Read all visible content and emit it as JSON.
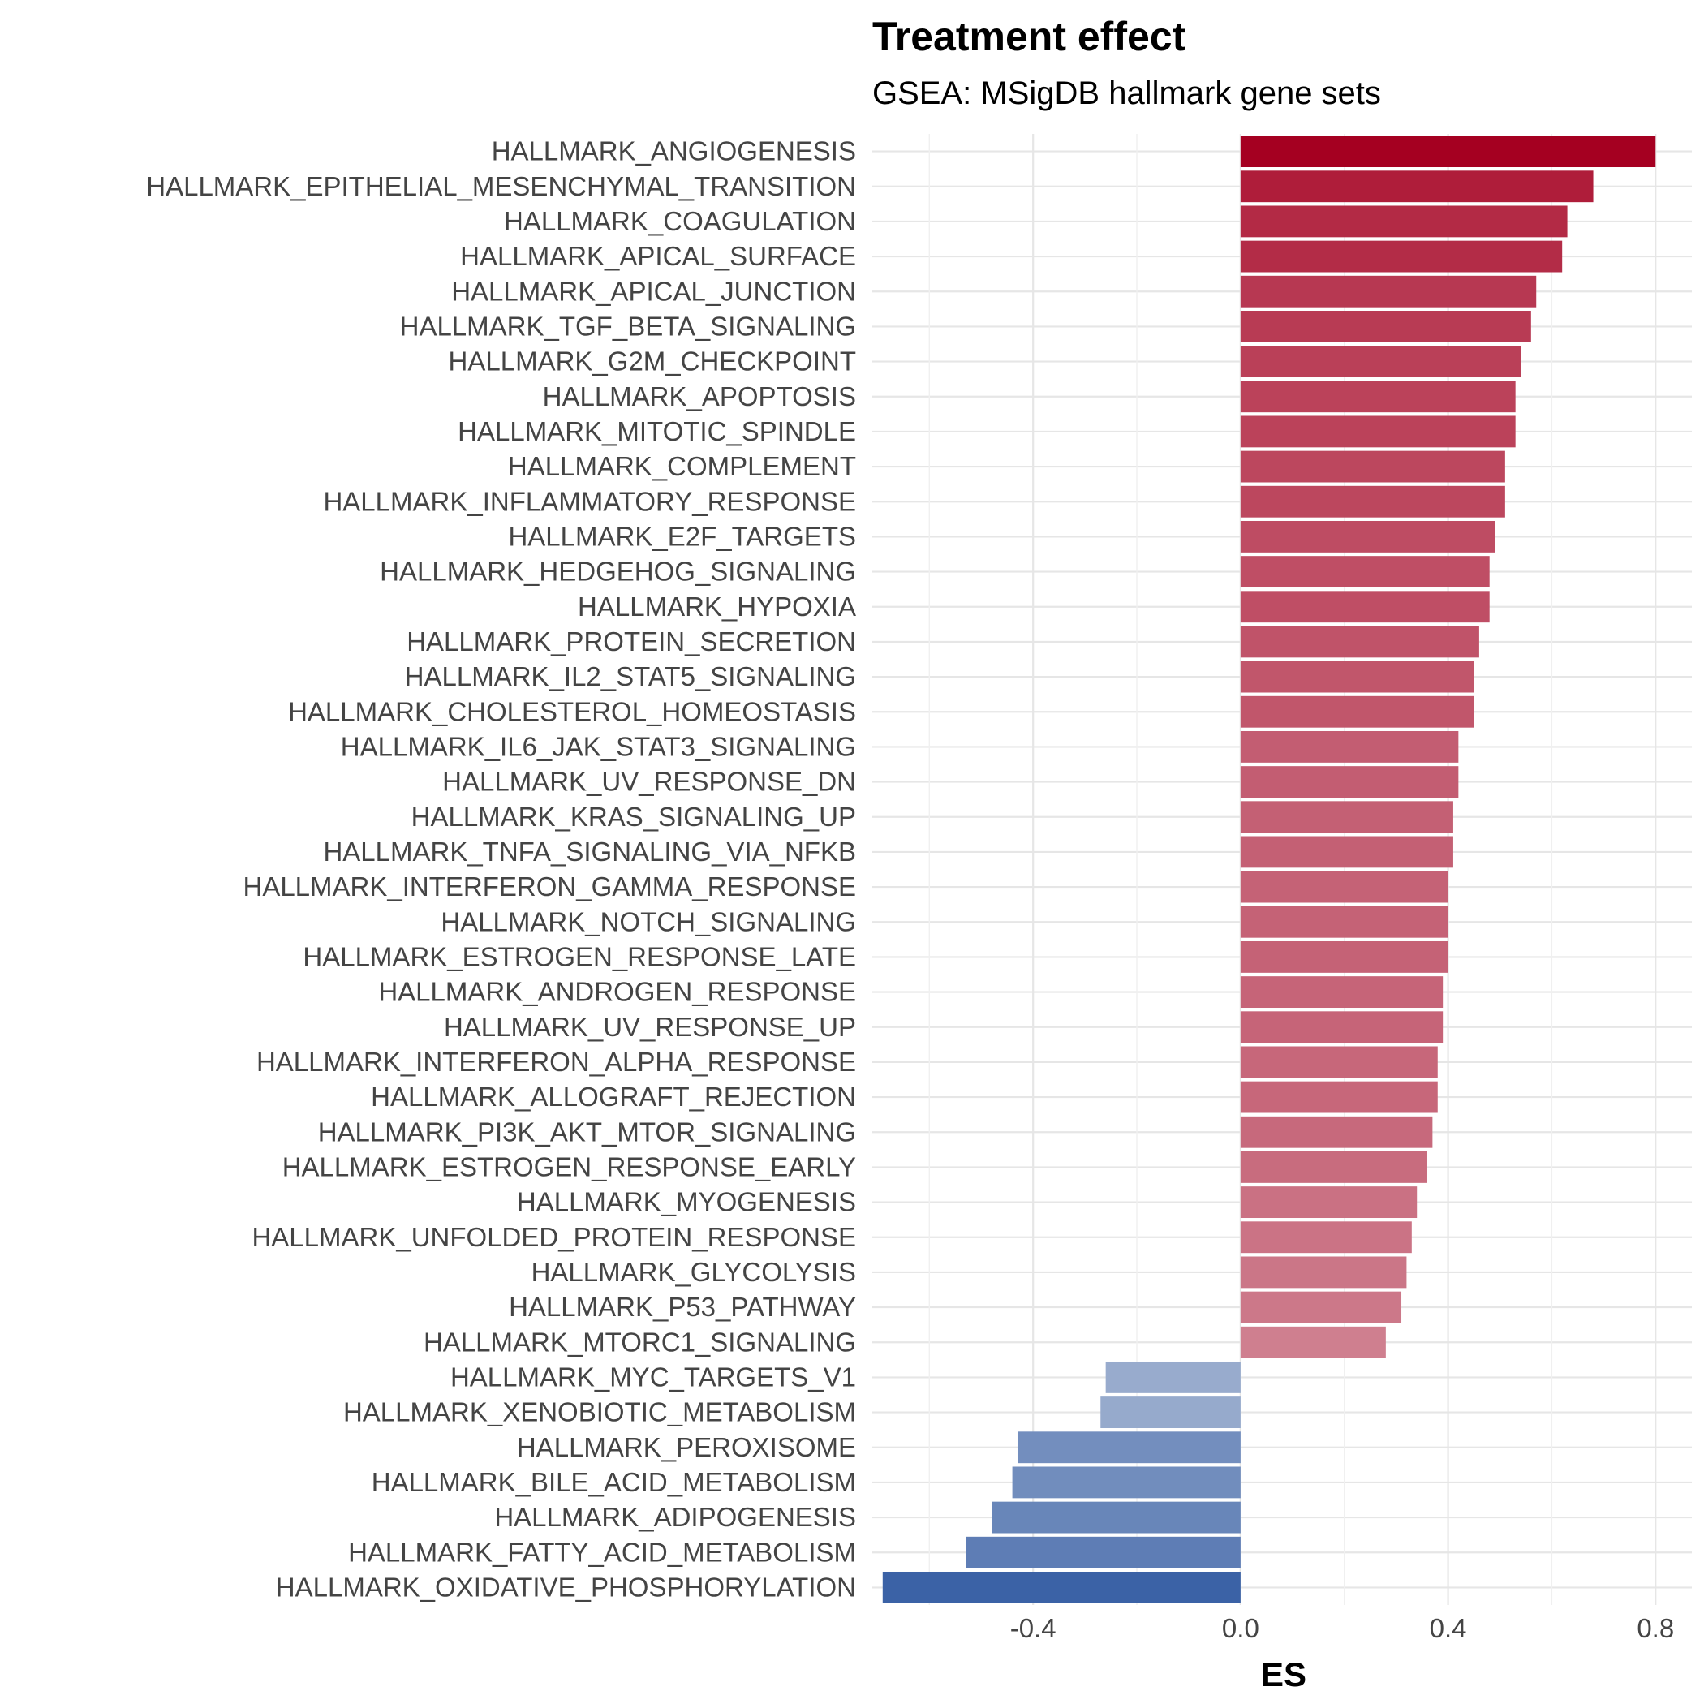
{
  "chart_data": {
    "type": "bar",
    "orientation": "horizontal",
    "title": "Treatment effect",
    "subtitle": "GSEA: MSigDB hallmark gene sets",
    "xlabel": "ES",
    "ylabel": "",
    "xlim": [
      -0.71,
      0.87
    ],
    "xticks": [
      -0.4,
      0.0,
      0.4,
      0.8
    ],
    "xtick_labels": [
      "-0.4",
      "0.0",
      "0.4",
      "0.8"
    ],
    "grid": true,
    "color_scale": {
      "low": "#3b62a6",
      "mid": "#f5f5f5",
      "high": "#a50021"
    },
    "categories": [
      "HALLMARK_ANGIOGENESIS",
      "HALLMARK_EPITHELIAL_MESENCHYMAL_TRANSITION",
      "HALLMARK_COAGULATION",
      "HALLMARK_APICAL_SURFACE",
      "HALLMARK_APICAL_JUNCTION",
      "HALLMARK_TGF_BETA_SIGNALING",
      "HALLMARK_G2M_CHECKPOINT",
      "HALLMARK_APOPTOSIS",
      "HALLMARK_MITOTIC_SPINDLE",
      "HALLMARK_COMPLEMENT",
      "HALLMARK_INFLAMMATORY_RESPONSE",
      "HALLMARK_E2F_TARGETS",
      "HALLMARK_HEDGEHOG_SIGNALING",
      "HALLMARK_HYPOXIA",
      "HALLMARK_PROTEIN_SECRETION",
      "HALLMARK_IL2_STAT5_SIGNALING",
      "HALLMARK_CHOLESTEROL_HOMEOSTASIS",
      "HALLMARK_IL6_JAK_STAT3_SIGNALING",
      "HALLMARK_UV_RESPONSE_DN",
      "HALLMARK_KRAS_SIGNALING_UP",
      "HALLMARK_TNFA_SIGNALING_VIA_NFKB",
      "HALLMARK_INTERFERON_GAMMA_RESPONSE",
      "HALLMARK_NOTCH_SIGNALING",
      "HALLMARK_ESTROGEN_RESPONSE_LATE",
      "HALLMARK_ANDROGEN_RESPONSE",
      "HALLMARK_UV_RESPONSE_UP",
      "HALLMARK_INTERFERON_ALPHA_RESPONSE",
      "HALLMARK_ALLOGRAFT_REJECTION",
      "HALLMARK_PI3K_AKT_MTOR_SIGNALING",
      "HALLMARK_ESTROGEN_RESPONSE_EARLY",
      "HALLMARK_MYOGENESIS",
      "HALLMARK_UNFOLDED_PROTEIN_RESPONSE",
      "HALLMARK_GLYCOLYSIS",
      "HALLMARK_P53_PATHWAY",
      "HALLMARK_MTORC1_SIGNALING",
      "HALLMARK_MYC_TARGETS_V1",
      "HALLMARK_XENOBIOTIC_METABOLISM",
      "HALLMARK_PEROXISOME",
      "HALLMARK_BILE_ACID_METABOLISM",
      "HALLMARK_ADIPOGENESIS",
      "HALLMARK_FATTY_ACID_METABOLISM",
      "HALLMARK_OXIDATIVE_PHOSPHORYLATION"
    ],
    "values": [
      0.8,
      0.68,
      0.63,
      0.62,
      0.57,
      0.56,
      0.54,
      0.53,
      0.53,
      0.51,
      0.51,
      0.49,
      0.48,
      0.48,
      0.46,
      0.45,
      0.45,
      0.42,
      0.42,
      0.41,
      0.41,
      0.4,
      0.4,
      0.4,
      0.39,
      0.39,
      0.38,
      0.38,
      0.37,
      0.36,
      0.34,
      0.33,
      0.32,
      0.31,
      0.28,
      -0.26,
      -0.27,
      -0.43,
      -0.44,
      -0.48,
      -0.53,
      -0.69
    ]
  }
}
